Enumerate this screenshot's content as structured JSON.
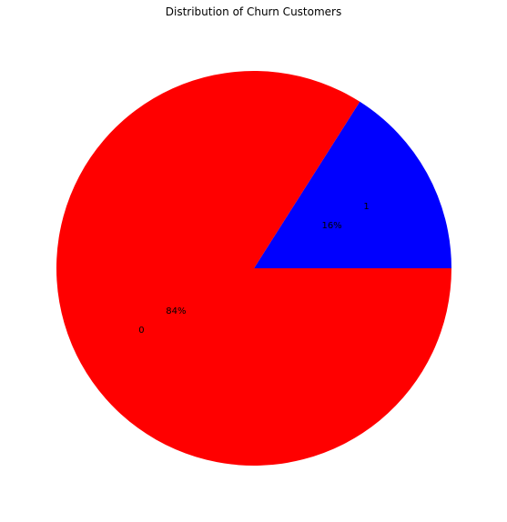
{
  "chart_data": {
    "type": "pie",
    "title": "Distribution of Churn Customers",
    "categories": [
      "1",
      "0"
    ],
    "values": [
      16,
      84
    ],
    "value_labels": [
      "16%",
      "84%"
    ],
    "colors": [
      "#0000ff",
      "#ff0000"
    ],
    "start_angle_deg": 0,
    "direction": "counterclockwise",
    "legend": "none"
  }
}
